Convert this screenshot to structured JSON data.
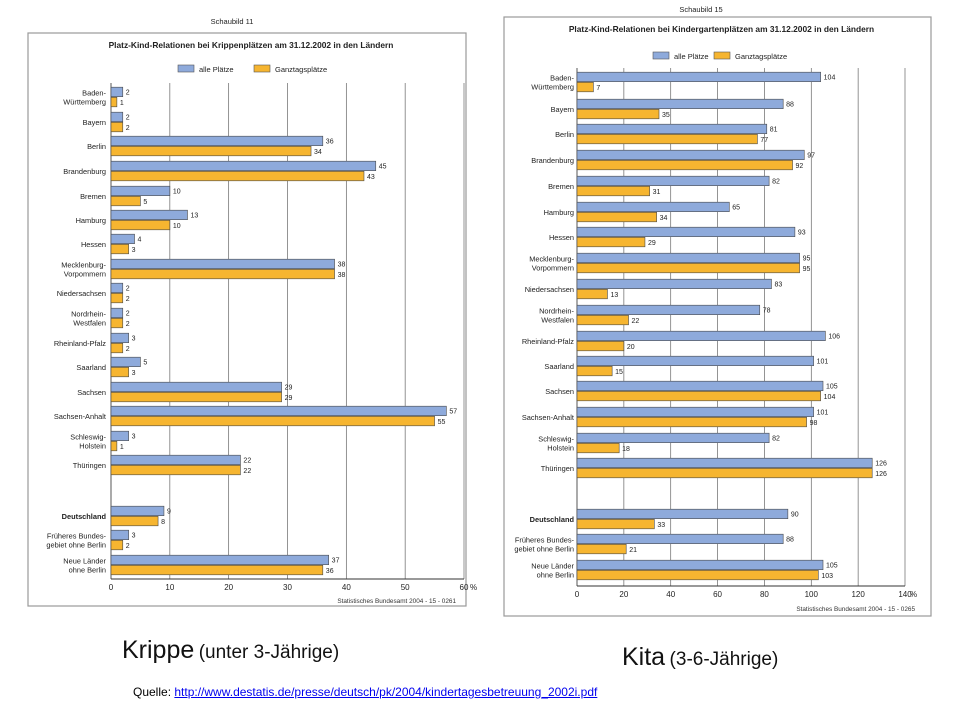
{
  "chart_data": [
    {
      "type": "bar",
      "orientation": "horizontal",
      "schaubild": "Schaubild 11",
      "title": "Platz-Kind-Relationen bei Krippenplätzen am 31.12.2002 in den Ländern",
      "footer": "Statistisches Bundesamt 2004 - 15 - 0261",
      "unit": "%",
      "xlim": [
        0,
        60
      ],
      "ticks": [
        0,
        10,
        20,
        30,
        40,
        50,
        60
      ],
      "grid": true,
      "legend_position": "top",
      "series": [
        {
          "name": "alle Plätze",
          "color": "#8eaadb"
        },
        {
          "name": "Ganztagsplätze",
          "color": "#f6b530"
        }
      ],
      "categories": [
        {
          "label": [
            "Baden-",
            "Württemberg"
          ],
          "values": [
            2,
            1
          ]
        },
        {
          "label": [
            "Bayern"
          ],
          "values": [
            2,
            2
          ]
        },
        {
          "label": [
            "Berlin"
          ],
          "values": [
            36,
            34
          ]
        },
        {
          "label": [
            "Brandenburg"
          ],
          "values": [
            45,
            43
          ]
        },
        {
          "label": [
            "Bremen"
          ],
          "values": [
            10,
            5
          ]
        },
        {
          "label": [
            "Hamburg"
          ],
          "values": [
            13,
            10
          ]
        },
        {
          "label": [
            "Hessen"
          ],
          "values": [
            4,
            3
          ]
        },
        {
          "label": [
            "Mecklenburg-",
            "Vorpommern"
          ],
          "values": [
            38,
            38
          ]
        },
        {
          "label": [
            "Niedersachsen"
          ],
          "values": [
            2,
            2
          ]
        },
        {
          "label": [
            "Nordrhein-",
            "Westfalen"
          ],
          "values": [
            2,
            2
          ]
        },
        {
          "label": [
            "Rheinland-Pfalz"
          ],
          "values": [
            3,
            2
          ]
        },
        {
          "label": [
            "Saarland"
          ],
          "values": [
            5,
            3
          ]
        },
        {
          "label": [
            "Sachsen"
          ],
          "values": [
            29,
            29
          ]
        },
        {
          "label": [
            "Sachsen-Anhalt"
          ],
          "values": [
            57,
            55
          ]
        },
        {
          "label": [
            "Schleswig-",
            "Holstein"
          ],
          "values": [
            3,
            1
          ]
        },
        {
          "label": [
            "Thüringen"
          ],
          "values": [
            22,
            22
          ]
        },
        {
          "label": [
            "Deutschland"
          ],
          "values": [
            9,
            8
          ],
          "bold": true,
          "gap_before": true
        },
        {
          "label": [
            "Früheres Bundes-",
            "gebiet ohne Berlin"
          ],
          "values": [
            3,
            2
          ]
        },
        {
          "label": [
            "Neue Länder",
            "ohne Berlin"
          ],
          "values": [
            37,
            36
          ]
        }
      ]
    },
    {
      "type": "bar",
      "orientation": "horizontal",
      "schaubild": "Schaubild 15",
      "title": "Platz-Kind-Relationen bei Kindergartenplätzen am 31.12.2002 in den Ländern",
      "footer": "Statistisches Bundesamt 2004 - 15 - 0265",
      "unit": "%",
      "xlim": [
        0,
        140
      ],
      "ticks": [
        0,
        20,
        40,
        60,
        80,
        100,
        120,
        140
      ],
      "grid": true,
      "legend_position": "top",
      "series": [
        {
          "name": "alle Plätze",
          "color": "#8eaadb"
        },
        {
          "name": "Ganztagsplätze",
          "color": "#f6b530"
        }
      ],
      "categories": [
        {
          "label": [
            "Baden-",
            "Württemberg"
          ],
          "values": [
            104,
            7
          ]
        },
        {
          "label": [
            "Bayern"
          ],
          "values": [
            88,
            35
          ]
        },
        {
          "label": [
            "Berlin"
          ],
          "values": [
            81,
            77
          ]
        },
        {
          "label": [
            "Brandenburg"
          ],
          "values": [
            97,
            92
          ]
        },
        {
          "label": [
            "Bremen"
          ],
          "values": [
            82,
            31
          ]
        },
        {
          "label": [
            "Hamburg"
          ],
          "values": [
            65,
            34
          ]
        },
        {
          "label": [
            "Hessen"
          ],
          "values": [
            93,
            29
          ]
        },
        {
          "label": [
            "Mecklenburg-",
            "Vorpommern"
          ],
          "values": [
            95,
            95
          ]
        },
        {
          "label": [
            "Niedersachsen"
          ],
          "values": [
            83,
            13
          ]
        },
        {
          "label": [
            "Nordrhein-",
            "Westfalen"
          ],
          "values": [
            78,
            22
          ]
        },
        {
          "label": [
            "Rheinland-Pfalz"
          ],
          "values": [
            106,
            20
          ]
        },
        {
          "label": [
            "Saarland"
          ],
          "values": [
            101,
            15
          ]
        },
        {
          "label": [
            "Sachsen"
          ],
          "values": [
            105,
            104
          ]
        },
        {
          "label": [
            "Sachsen-Anhalt"
          ],
          "values": [
            101,
            98
          ]
        },
        {
          "label": [
            "Schleswig-",
            "Holstein"
          ],
          "values": [
            82,
            18
          ]
        },
        {
          "label": [
            "Thüringen"
          ],
          "values": [
            126,
            126
          ]
        },
        {
          "label": [
            "Deutschland"
          ],
          "values": [
            90,
            33
          ],
          "bold": true,
          "gap_before": true
        },
        {
          "label": [
            "Früheres Bundes-",
            "gebiet ohne Berlin"
          ],
          "values": [
            88,
            21
          ]
        },
        {
          "label": [
            "Neue Länder",
            "ohne Berlin"
          ],
          "values": [
            105,
            103
          ]
        }
      ]
    }
  ],
  "captions": {
    "left_big": "Krippe",
    "left_small": "(unter 3-Jährige)",
    "right_big": "Kita",
    "right_small": "(3-6-Jährige)"
  },
  "source": {
    "label": "Quelle:",
    "url": "http://www.destatis.de/presse/deutsch/pk/2004/kindertagesbetreuung_2002i.pdf"
  }
}
